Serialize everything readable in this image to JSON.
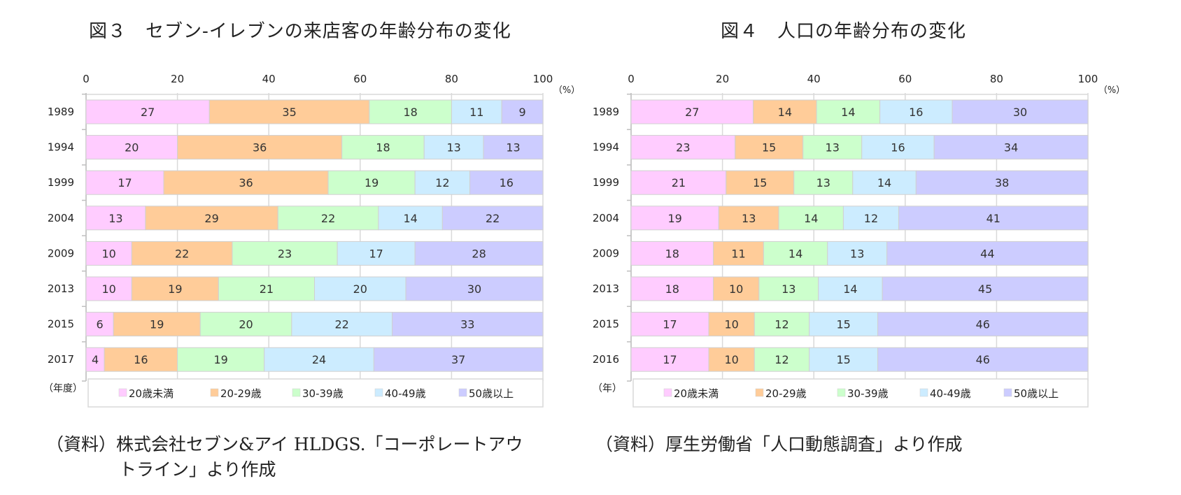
{
  "titles": {
    "left": "図３　セブン-イレブンの来店客の年齢分布の変化",
    "right": "図４　人口の年齢分布の変化"
  },
  "notes": {
    "left_line1": "（資料）株式会社セブン&アイ HLDGS.「コーポレートアウ",
    "left_line2": "トライン」より作成",
    "right": "（資料）厚生労働省「人口動態調査」より作成"
  },
  "colors": {
    "under20": "#FFCCFF",
    "20-29": "#FFCC99",
    "30-39": "#CCFFCC",
    "40-49": "#CCECFF",
    "50plus": "#CCCCFF",
    "grid": "#D9D9D9",
    "text": "#222222"
  },
  "chart_data": [
    {
      "type": "bar",
      "orientation": "horizontal",
      "stacked": true,
      "title": "図３　セブン-イレブンの来店客の年齢分布の変化",
      "xlabel_unit": "（%）",
      "ylabel_unit": "（年度）",
      "xlim": [
        0,
        100
      ],
      "x_ticks": [
        "0",
        "20",
        "40",
        "60",
        "80",
        "100"
      ],
      "grid": true,
      "legend_position": "bottom",
      "categories": [
        "1989",
        "1994",
        "1999",
        "2004",
        "2009",
        "2013",
        "2015",
        "2017"
      ],
      "series": [
        {
          "name": "20歳未満",
          "values": [
            27,
            20,
            17,
            13,
            10,
            10,
            6,
            4
          ]
        },
        {
          "name": "20-29歳",
          "values": [
            35,
            36,
            36,
            29,
            22,
            19,
            19,
            16
          ]
        },
        {
          "name": "30-39歳",
          "values": [
            18,
            18,
            19,
            22,
            23,
            21,
            20,
            19
          ]
        },
        {
          "name": "40-49歳",
          "values": [
            11,
            13,
            12,
            14,
            17,
            20,
            22,
            24
          ]
        },
        {
          "name": "50歳以上",
          "values": [
            9,
            13,
            16,
            22,
            28,
            30,
            33,
            37
          ]
        }
      ]
    },
    {
      "type": "bar",
      "orientation": "horizontal",
      "stacked": true,
      "title": "図４　人口の年齢分布の変化",
      "xlabel_unit": "（%）",
      "ylabel_unit": "（年）",
      "xlim": [
        0,
        100
      ],
      "x_ticks": [
        "0",
        "20",
        "40",
        "60",
        "80",
        "100"
      ],
      "grid": true,
      "legend_position": "bottom",
      "categories": [
        "1989",
        "1994",
        "1999",
        "2004",
        "2009",
        "2013",
        "2015",
        "2016"
      ],
      "series": [
        {
          "name": "20歳未満",
          "values": [
            27,
            23,
            21,
            19,
            18,
            18,
            17,
            17
          ]
        },
        {
          "name": "20-29歳",
          "values": [
            14,
            15,
            15,
            13,
            11,
            10,
            10,
            10
          ]
        },
        {
          "name": "30-39歳",
          "values": [
            14,
            13,
            13,
            14,
            14,
            13,
            12,
            12
          ]
        },
        {
          "name": "40-49歳",
          "values": [
            16,
            16,
            14,
            12,
            13,
            14,
            15,
            15
          ]
        },
        {
          "name": "50歳以上",
          "values": [
            30,
            34,
            38,
            41,
            44,
            45,
            46,
            46
          ]
        }
      ]
    }
  ]
}
